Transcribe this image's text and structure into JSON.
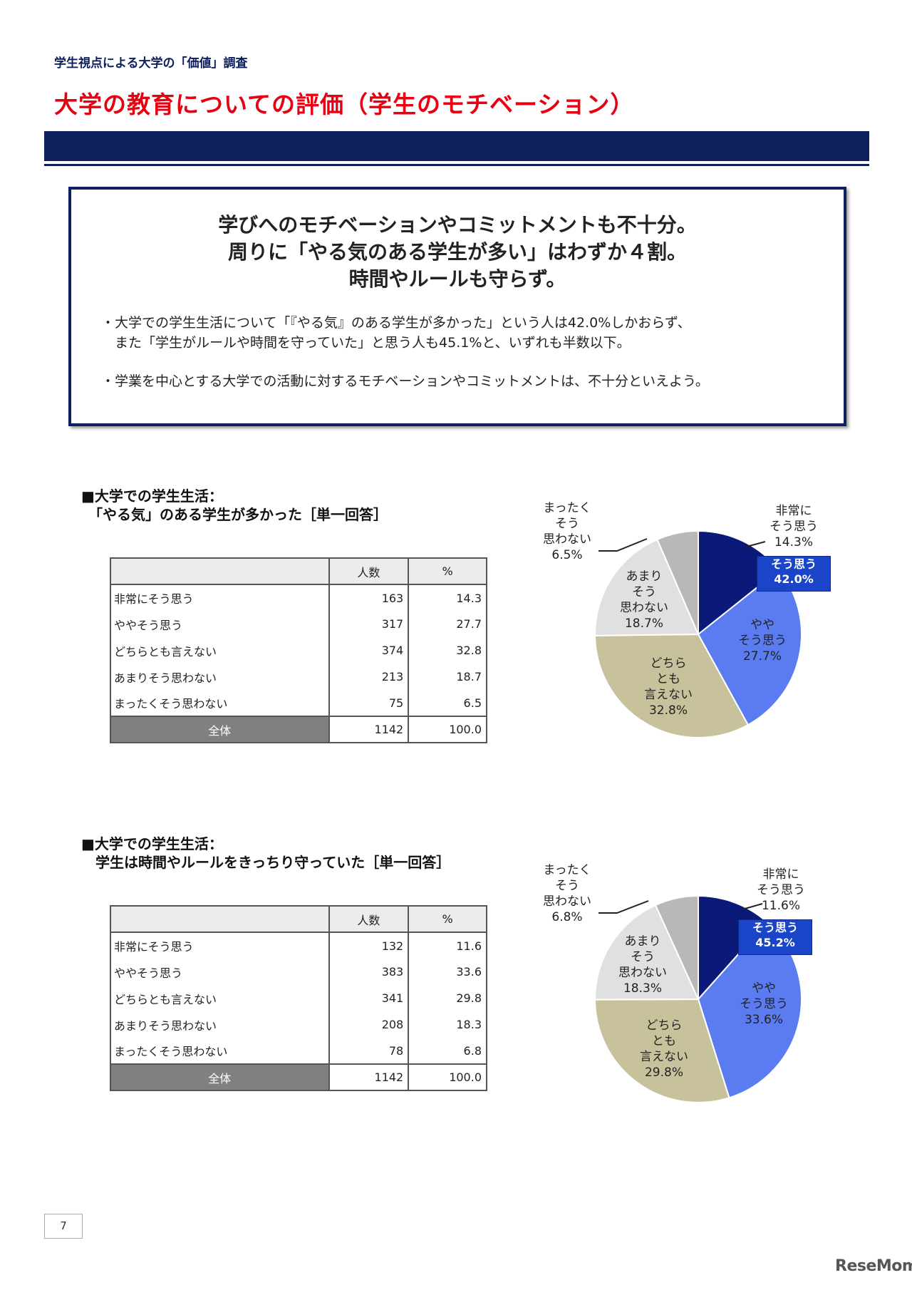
{
  "header": {
    "subtitle": "学生視点による大学の「価値」調査",
    "title": "大学の教育についての評価（学生のモチベーション）"
  },
  "summary": {
    "headline_lines": [
      "学びへのモチベーションやコミットメントも不十分。",
      "周りに「やる気のある学生が多い」はわずか４割。",
      "時間やルールも守らず。"
    ],
    "bullets": [
      "・大学での学生生活について「『やる気』のある学生が多かった」という人は42.0%しかおらず、",
      "　また「学生がルールや時間を守っていた」と思う人も45.1%と、いずれも半数以下。",
      "・学業を中心とする大学での活動に対するモチベーションやコミットメントは、不十分といえよう。"
    ]
  },
  "section1": {
    "title_line1": "■大学での学生生活：",
    "title_line2": "　「やる気」のある学生が多かった［単一回答］",
    "table": {
      "headers": [
        "",
        "人数",
        "%"
      ],
      "rows": [
        [
          "非常にそう思う",
          "163",
          "14.3"
        ],
        [
          "ややそう思う",
          "317",
          "27.7"
        ],
        [
          "どちらとも言えない",
          "374",
          "32.8"
        ],
        [
          "あまりそう思わない",
          "213",
          "18.7"
        ],
        [
          "まったくそう思わない",
          "75",
          "6.5"
        ]
      ],
      "total": [
        "全体",
        "1142",
        "100.0"
      ]
    },
    "callout": [
      "そう思う",
      "42.0%"
    ],
    "pie_labels": [
      [
        "非常に",
        "そう思う",
        "14.3%"
      ],
      [
        "やや",
        "そう思う",
        "27.7%"
      ],
      [
        "どちら",
        "とも",
        "言えない",
        "32.8%"
      ],
      [
        "あまり",
        "そう",
        "思わない",
        "18.7%"
      ],
      [
        "まったく",
        "そう",
        "思わない",
        "6.5%"
      ]
    ]
  },
  "section2": {
    "title_line1": "■大学での学生生活：",
    "title_line2": "　学生は時間やルールをきっちり守っていた［単一回答］",
    "table": {
      "headers": [
        "",
        "人数",
        "%"
      ],
      "rows": [
        [
          "非常にそう思う",
          "132",
          "11.6"
        ],
        [
          "ややそう思う",
          "383",
          "33.6"
        ],
        [
          "どちらとも言えない",
          "341",
          "29.8"
        ],
        [
          "あまりそう思わない",
          "208",
          "18.3"
        ],
        [
          "まったくそう思わない",
          "78",
          "6.8"
        ]
      ],
      "total": [
        "全体",
        "1142",
        "100.0"
      ]
    },
    "callout": [
      "そう思う",
      "45.2%"
    ],
    "pie_labels": [
      [
        "非常に",
        "そう思う",
        "11.6%"
      ],
      [
        "やや",
        "そう思う",
        "33.6%"
      ],
      [
        "どちら",
        "とも",
        "言えない",
        "29.8%"
      ],
      [
        "あまり",
        "そう",
        "思わない",
        "18.3%"
      ],
      [
        "まったく",
        "そう",
        "思わない",
        "6.8%"
      ]
    ]
  },
  "chart_data": [
    {
      "type": "pie",
      "categories": [
        "非常にそう思う",
        "ややそう思う",
        "どちらとも言えない",
        "あまりそう思わない",
        "まったくそう思わない"
      ],
      "values": [
        14.3,
        27.7,
        32.8,
        18.7,
        6.5
      ],
      "colors": [
        "#0b1a78",
        "#5a7cf0",
        "#c8c29c",
        "#e0e0e0",
        "#b8b8b8"
      ]
    },
    {
      "type": "pie",
      "categories": [
        "非常にそう思う",
        "ややそう思う",
        "どちらとも言えない",
        "あまりそう思わない",
        "まったくそう思わない"
      ],
      "values": [
        11.6,
        33.6,
        29.8,
        18.3,
        6.8
      ],
      "colors": [
        "#0b1a78",
        "#5a7cf0",
        "#c8c29c",
        "#e0e0e0",
        "#b8b8b8"
      ]
    }
  ],
  "footer": {
    "page_number": "7",
    "logo": "ReseMom"
  }
}
